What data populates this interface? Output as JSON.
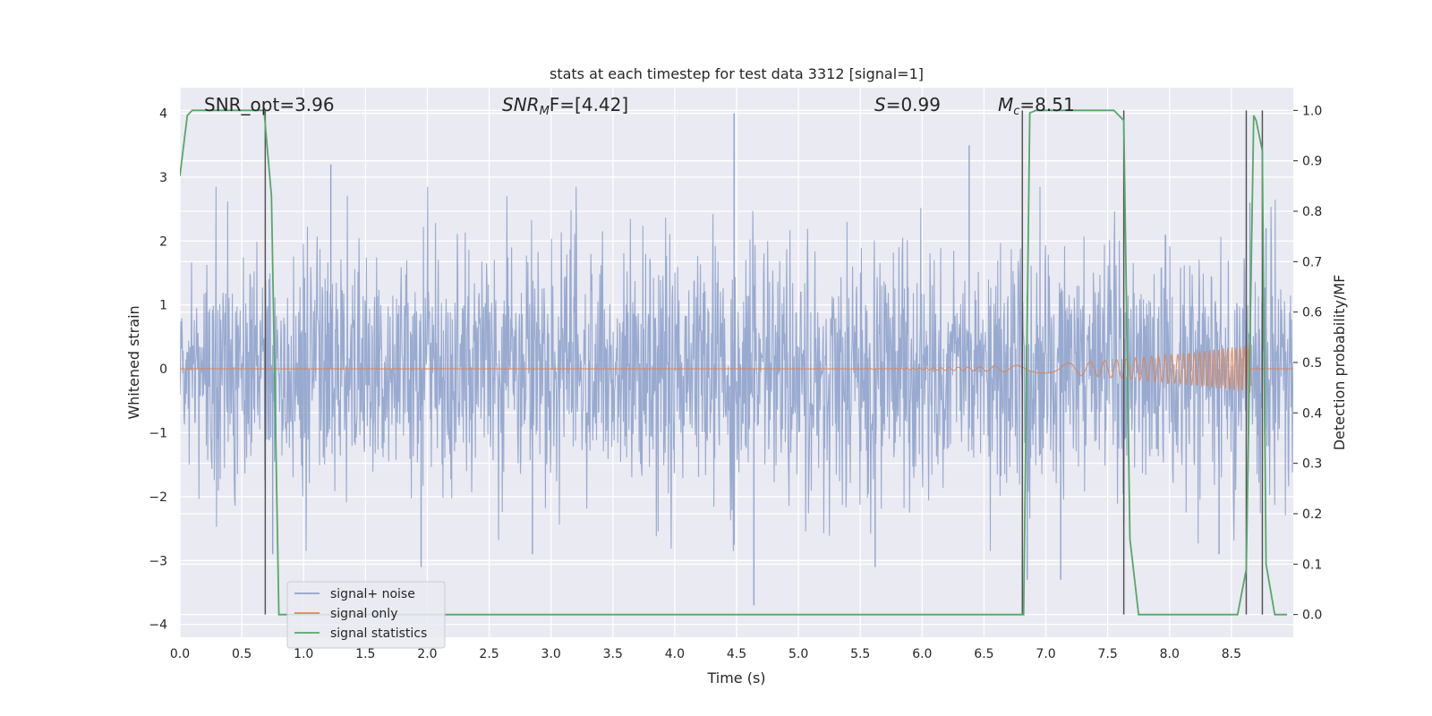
{
  "chart_data": {
    "type": "line",
    "title": "stats at each timestep for test data 3312 [signal=1]",
    "xlabel": "Time (s)",
    "ylabel": "Whitened strain",
    "y2label": "Detection probability/MF",
    "xlim": [
      0,
      9.0
    ],
    "ylim": [
      -4.2,
      4.4
    ],
    "y2lim": [
      -0.045,
      1.045
    ],
    "xticks": [
      0.0,
      0.5,
      1.0,
      1.5,
      2.0,
      2.5,
      3.0,
      3.5,
      4.0,
      4.5,
      5.0,
      5.5,
      6.0,
      6.5,
      7.0,
      7.5,
      8.0,
      8.5
    ],
    "yticks": [
      -4,
      -3,
      -2,
      -1,
      0,
      1,
      2,
      3,
      4
    ],
    "y2ticks": [
      0.0,
      0.1,
      0.2,
      0.3,
      0.4,
      0.5,
      0.6,
      0.7,
      0.8,
      0.9,
      1.0
    ],
    "xtick_labels": [
      "0.0",
      "0.5",
      "1.0",
      "1.5",
      "2.0",
      "2.5",
      "3.0",
      "3.5",
      "4.0",
      "4.5",
      "5.0",
      "5.5",
      "6.0",
      "6.5",
      "7.0",
      "7.5",
      "8.0",
      "8.5"
    ],
    "ytick_labels": [
      "4",
      "3",
      "2",
      "1",
      "0",
      "−1",
      "−2",
      "−3",
      "−4"
    ],
    "y2tick_labels": [
      "1.0",
      "0.9",
      "0.8",
      "0.7",
      "0.6",
      "0.5",
      "0.4",
      "0.3",
      "0.2",
      "0.1",
      "0.0"
    ],
    "grid": true,
    "legend_position": "bottom-left",
    "annotations": {
      "snr_opt": "SNR_opt=3.96",
      "snr_mf_base": "SNR",
      "snr_mf_sub": "M",
      "snr_mf_rest": "F=[4.42]",
      "s_var": "S",
      "s_rest": "=0.99",
      "mc_var": "M",
      "mc_sub": "c",
      "mc_rest": "=8.51"
    },
    "series": [
      {
        "name": "signal+ noise",
        "color": "#8fa3cc",
        "axis": "left",
        "description_stats": {
          "typical_peak_high": [
            1.6,
            2.8
          ],
          "typical_peak_low": [
            -1.6,
            -2.8
          ],
          "dense_band": [
            -0.9,
            0.9
          ]
        },
        "outliers": [
          {
            "x": 0.75,
            "y": -2.9
          },
          {
            "x": 1.22,
            "y": 3.2
          },
          {
            "x": 1.95,
            "y": -3.1
          },
          {
            "x": 2.85,
            "y": -2.9
          },
          {
            "x": 4.48,
            "y": 4.0
          },
          {
            "x": 4.64,
            "y": -3.7
          },
          {
            "x": 5.62,
            "y": -3.1
          },
          {
            "x": 6.38,
            "y": 3.5
          },
          {
            "x": 6.85,
            "y": -3.3
          },
          {
            "x": 7.12,
            "y": -3.3
          },
          {
            "x": 7.63,
            "y": -2.4
          },
          {
            "x": 8.4,
            "y": -2.9
          },
          {
            "x": 8.65,
            "y": 2.6
          },
          {
            "x": 8.78,
            "y": 2.2
          }
        ]
      },
      {
        "name": "signal only",
        "color": "#dd8452",
        "axis": "left",
        "chirp": {
          "start_x": 4.5,
          "end_x": 8.65,
          "max_amplitude": 0.38
        }
      },
      {
        "name": "signal statistics",
        "color": "#55a868",
        "axis": "right",
        "x": [
          0.0,
          0.06,
          0.1,
          0.2,
          0.3,
          0.4,
          0.5,
          0.6,
          0.68,
          0.74,
          0.8,
          0.86,
          0.9,
          1.0,
          2.0,
          3.0,
          4.0,
          5.0,
          6.0,
          6.5,
          6.75,
          6.82,
          6.87,
          6.92,
          7.0,
          7.2,
          7.4,
          7.55,
          7.63,
          7.68,
          7.75,
          7.8,
          8.0,
          8.2,
          8.4,
          8.55,
          8.62,
          8.68,
          8.7,
          8.75,
          8.78,
          8.85,
          8.9,
          8.95
        ],
        "values": [
          0.87,
          0.99,
          1.0,
          1.0,
          1.0,
          1.0,
          1.0,
          1.0,
          1.0,
          0.83,
          0.0,
          0.0,
          0.0,
          0.0,
          0.0,
          0.0,
          0.0,
          0.0,
          0.0,
          0.0,
          0.0,
          0.0,
          0.995,
          1.0,
          1.0,
          1.0,
          1.0,
          1.0,
          0.98,
          0.15,
          0.0,
          0.0,
          0.0,
          0.0,
          0.0,
          0.0,
          0.09,
          0.99,
          0.98,
          0.92,
          0.1,
          0.0,
          0.0,
          0.0
        ]
      }
    ],
    "vertical_lines_x": [
      0.69,
      6.81,
      7.63,
      8.62,
      8.75
    ]
  }
}
